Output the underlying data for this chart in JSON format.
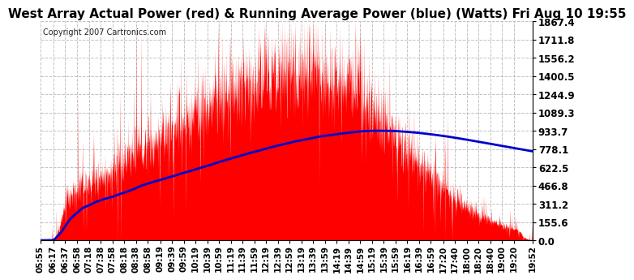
{
  "title": "West Array Actual Power (red) & Running Average Power (blue) (Watts) Fri Aug 10 19:55",
  "copyright": "Copyright 2007 Cartronics.com",
  "bg_color": "#ffffff",
  "plot_bg_color": "#ffffff",
  "grid_color": "#bbbbbb",
  "actual_color": "#ff0000",
  "avg_color": "#0000cc",
  "yticks": [
    0.0,
    155.6,
    311.2,
    466.8,
    622.5,
    778.1,
    933.7,
    1089.3,
    1244.9,
    1400.5,
    1556.2,
    1711.8,
    1867.4
  ],
  "ymax": 1867.4,
  "xtick_labels": [
    "05:55",
    "06:17",
    "06:37",
    "06:58",
    "07:18",
    "07:38",
    "07:58",
    "08:18",
    "08:38",
    "08:58",
    "09:19",
    "09:39",
    "09:59",
    "10:19",
    "10:39",
    "10:59",
    "11:19",
    "11:39",
    "11:59",
    "12:19",
    "12:39",
    "12:59",
    "13:19",
    "13:39",
    "13:59",
    "14:19",
    "14:39",
    "14:59",
    "15:19",
    "15:39",
    "15:59",
    "16:19",
    "16:39",
    "16:59",
    "17:20",
    "17:40",
    "18:00",
    "18:20",
    "18:40",
    "19:00",
    "19:20",
    "19:52"
  ],
  "title_fontsize": 11,
  "label_fontsize": 8.5,
  "tick_fontsize": 7.5,
  "copyright_fontsize": 7
}
